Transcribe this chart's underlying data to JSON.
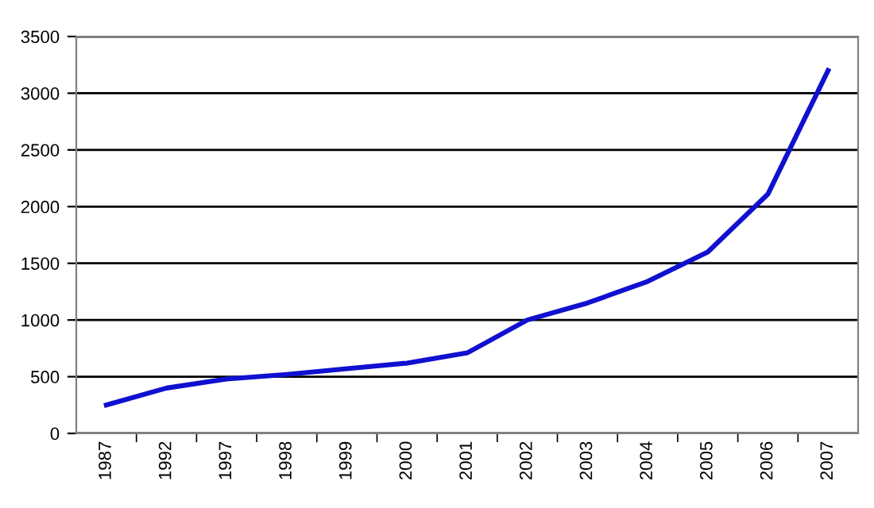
{
  "chart_data": {
    "type": "line",
    "categories": [
      "1987",
      "1992",
      "1997",
      "1998",
      "1999",
      "2000",
      "2001",
      "2002",
      "2003",
      "2004",
      "2005",
      "2006",
      "2007"
    ],
    "series": [
      {
        "color": "#1010d0",
        "values": [
          250,
          400,
          480,
          520,
          570,
          620,
          710,
          1000,
          1150,
          1340,
          1600,
          2110,
          3200
        ]
      }
    ],
    "ylim": [
      0,
      3500
    ],
    "yticks": [
      0,
      500,
      1000,
      1500,
      2000,
      2500,
      3000,
      3500
    ],
    "grid": "y",
    "marker": "none",
    "line_style": "solid"
  }
}
